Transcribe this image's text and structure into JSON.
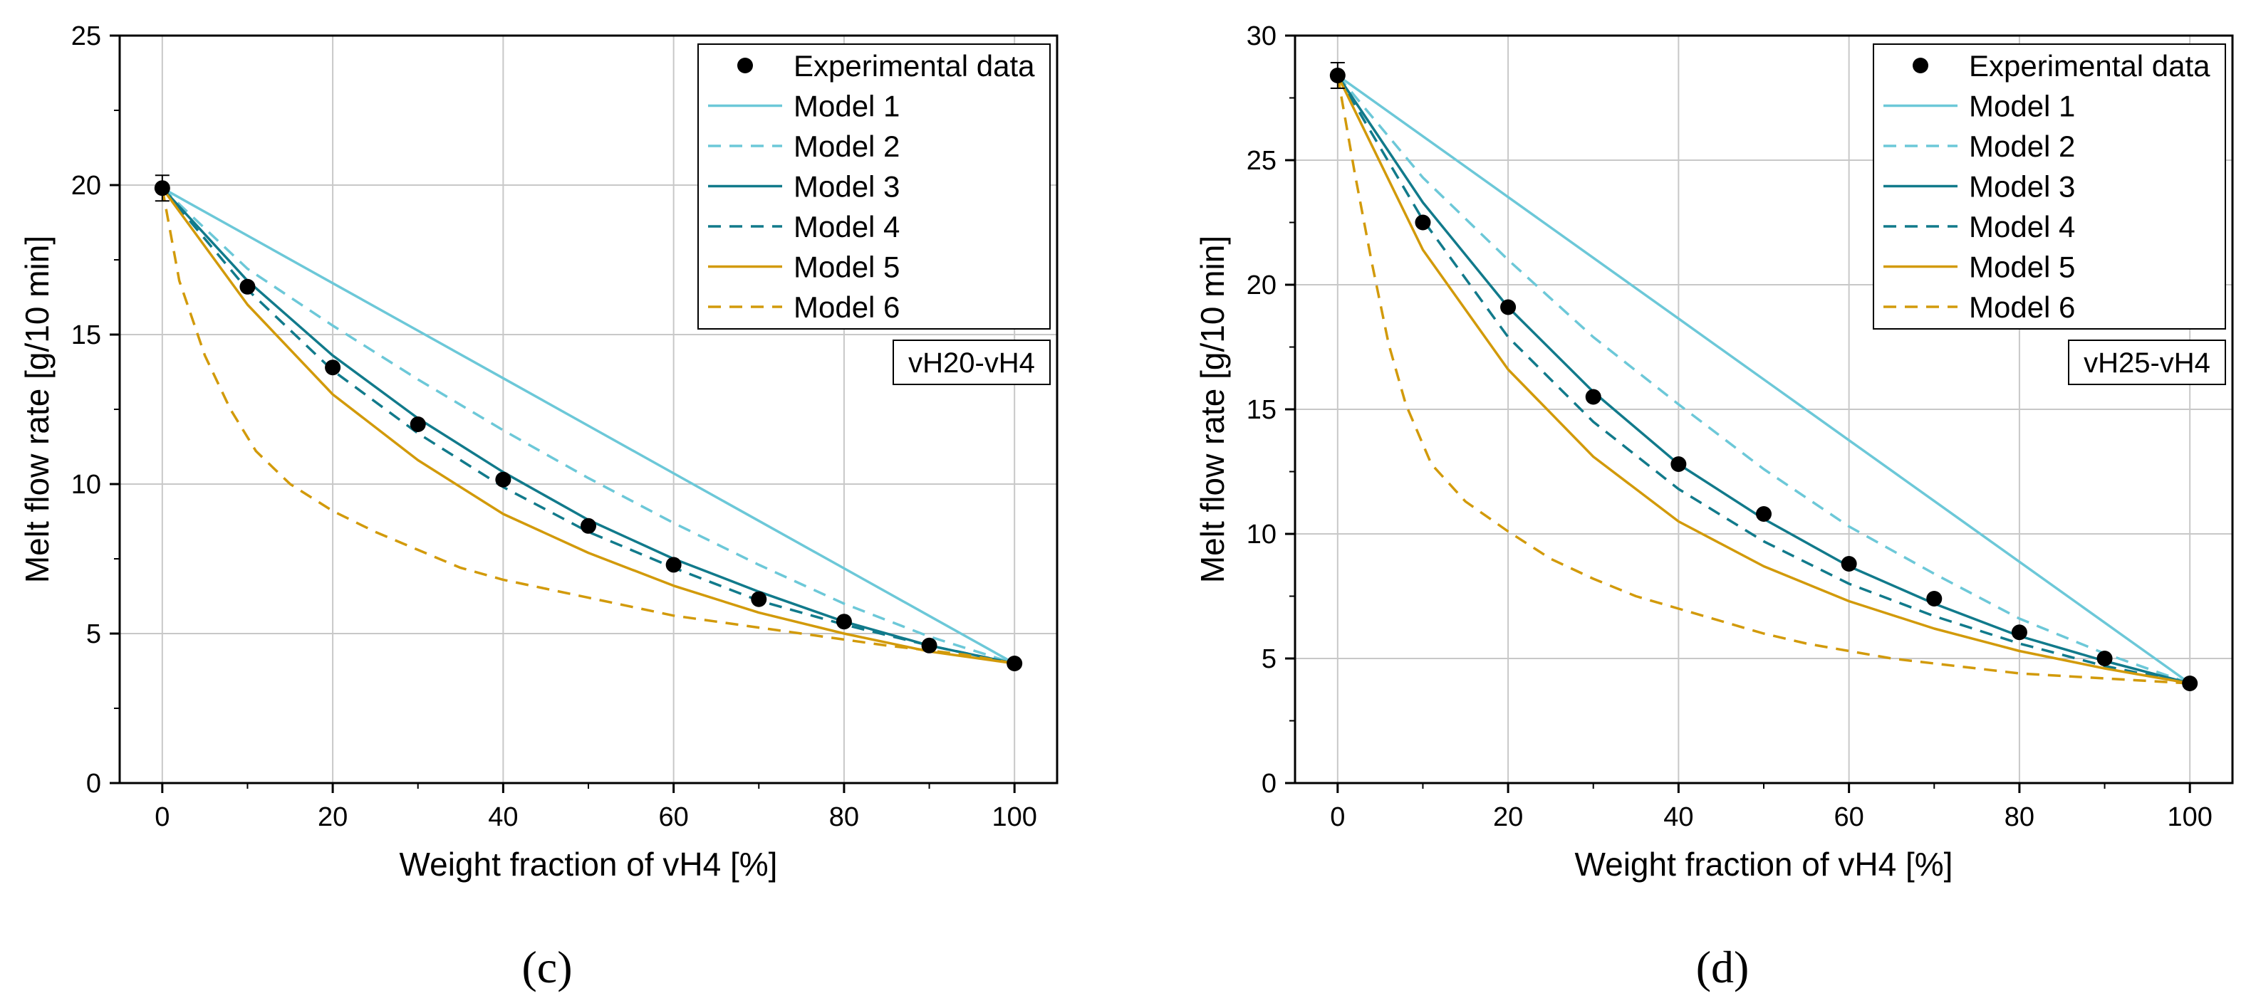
{
  "colors": {
    "model1": "#6cc8d8",
    "model2": "#6cc8d8",
    "model3": "#117a8b",
    "model4": "#117a8b",
    "model5": "#d29a0a",
    "model6": "#d29a0a",
    "experimental": "#000000",
    "grid": "#c8c8c8"
  },
  "legend": {
    "experimental": "Experimental data",
    "model1": "Model 1",
    "model2": "Model 2",
    "model3": "Model 3",
    "model4": "Model 4",
    "model5": "Model 5",
    "model6": "Model 6"
  },
  "chart_data": [
    {
      "type": "line",
      "panel_label": "(c)",
      "tag": "vH20-vH4",
      "xlabel": "Weight fraction of vH4 [%]",
      "ylabel": "Melt flow rate [g/10 min]",
      "xlim": [
        -5,
        105
      ],
      "ylim": [
        0,
        25
      ],
      "xticks": [
        0,
        20,
        40,
        60,
        80,
        100
      ],
      "yticks": [
        0,
        5,
        10,
        15,
        20,
        25
      ],
      "grid": true,
      "legend_position": "top-right",
      "x": [
        0,
        10,
        20,
        30,
        40,
        50,
        60,
        70,
        80,
        90,
        100
      ],
      "experimental": [
        19.9,
        16.6,
        13.9,
        12.0,
        10.15,
        8.6,
        7.3,
        6.15,
        5.4,
        4.6,
        4.0
      ],
      "series": [
        {
          "name": "Model 1",
          "style": "solid",
          "values": [
            19.9,
            18.31,
            16.72,
            15.13,
            13.54,
            11.95,
            10.36,
            8.77,
            7.18,
            5.59,
            4.0
          ]
        },
        {
          "name": "Model 2",
          "style": "dashed",
          "values": [
            19.9,
            17.2,
            15.3,
            13.5,
            11.8,
            10.2,
            8.7,
            7.3,
            6.0,
            4.9,
            4.0
          ]
        },
        {
          "name": "Model 3",
          "style": "solid",
          "values": [
            19.9,
            16.8,
            14.3,
            12.2,
            10.4,
            8.8,
            7.5,
            6.4,
            5.4,
            4.6,
            4.0
          ]
        },
        {
          "name": "Model 4",
          "style": "dashed",
          "values": [
            19.9,
            16.5,
            13.8,
            11.7,
            9.9,
            8.4,
            7.2,
            6.1,
            5.3,
            4.6,
            4.0
          ]
        },
        {
          "name": "Model 5",
          "style": "solid",
          "values": [
            19.9,
            16.0,
            13.0,
            10.8,
            9.0,
            7.7,
            6.6,
            5.7,
            5.0,
            4.4,
            4.0
          ]
        },
        {
          "name": "Model 6",
          "style": "dashed",
          "values": [
            19.9,
            16.8,
            14.3,
            12.5,
            11.1,
            10.0,
            9.1,
            8.4,
            7.8,
            7.2,
            6.8,
            6.5,
            6.2,
            5.9,
            5.6,
            5.4,
            5.2,
            5.0,
            4.8,
            4.6,
            4.5,
            4.4,
            4.3,
            4.2,
            4.1,
            4.0
          ],
          "x": [
            0,
            2,
            5,
            8,
            11,
            15,
            20,
            25,
            30,
            35,
            40,
            45,
            50,
            55,
            60,
            65,
            70,
            75,
            80,
            85,
            88,
            91,
            94,
            96,
            98,
            100
          ]
        }
      ]
    },
    {
      "type": "line",
      "panel_label": "(d)",
      "tag": "vH25-vH4",
      "xlabel": "Weight fraction of vH4 [%]",
      "ylabel": "Melt flow rate [g/10 min]",
      "xlim": [
        -5,
        105
      ],
      "ylim": [
        0,
        30
      ],
      "xticks": [
        0,
        20,
        40,
        60,
        80,
        100
      ],
      "yticks": [
        0,
        5,
        10,
        15,
        20,
        25,
        30
      ],
      "grid": true,
      "legend_position": "top-right",
      "x": [
        0,
        10,
        20,
        30,
        40,
        50,
        60,
        70,
        80,
        90,
        100
      ],
      "experimental": [
        28.4,
        22.5,
        19.1,
        15.5,
        12.8,
        10.8,
        8.8,
        7.4,
        6.05,
        5.0,
        4.0
      ],
      "series": [
        {
          "name": "Model 1",
          "style": "solid",
          "values": [
            28.4,
            25.96,
            23.52,
            21.08,
            18.64,
            16.2,
            13.76,
            11.32,
            8.88,
            6.44,
            4.0
          ]
        },
        {
          "name": "Model 2",
          "style": "dashed",
          "values": [
            28.4,
            24.3,
            21.0,
            17.9,
            15.2,
            12.6,
            10.3,
            8.4,
            6.6,
            5.2,
            4.0
          ]
        },
        {
          "name": "Model 3",
          "style": "solid",
          "values": [
            28.4,
            23.3,
            19.1,
            15.7,
            12.8,
            10.6,
            8.7,
            7.2,
            5.9,
            4.9,
            4.0
          ]
        },
        {
          "name": "Model 4",
          "style": "dashed",
          "values": [
            28.4,
            22.6,
            17.9,
            14.5,
            11.8,
            9.7,
            8.0,
            6.7,
            5.6,
            4.7,
            4.0
          ]
        },
        {
          "name": "Model 5",
          "style": "solid",
          "values": [
            28.4,
            21.4,
            16.6,
            13.1,
            10.5,
            8.7,
            7.3,
            6.2,
            5.3,
            4.6,
            4.0
          ]
        },
        {
          "name": "Model 6",
          "style": "dashed",
          "values": [
            28.4,
            24.5,
            20.9,
            17.6,
            15.2,
            12.8,
            11.3,
            10.1,
            9.0,
            8.2,
            7.5,
            7.0,
            6.5,
            6.0,
            5.6,
            5.3,
            5.0,
            4.8,
            4.6,
            4.4,
            4.3,
            4.2,
            4.1,
            4.0
          ],
          "x": [
            0,
            2,
            4,
            6,
            8,
            11,
            15,
            20,
            25,
            30,
            35,
            40,
            45,
            50,
            55,
            60,
            65,
            70,
            75,
            80,
            85,
            90,
            95,
            100
          ]
        }
      ]
    }
  ]
}
